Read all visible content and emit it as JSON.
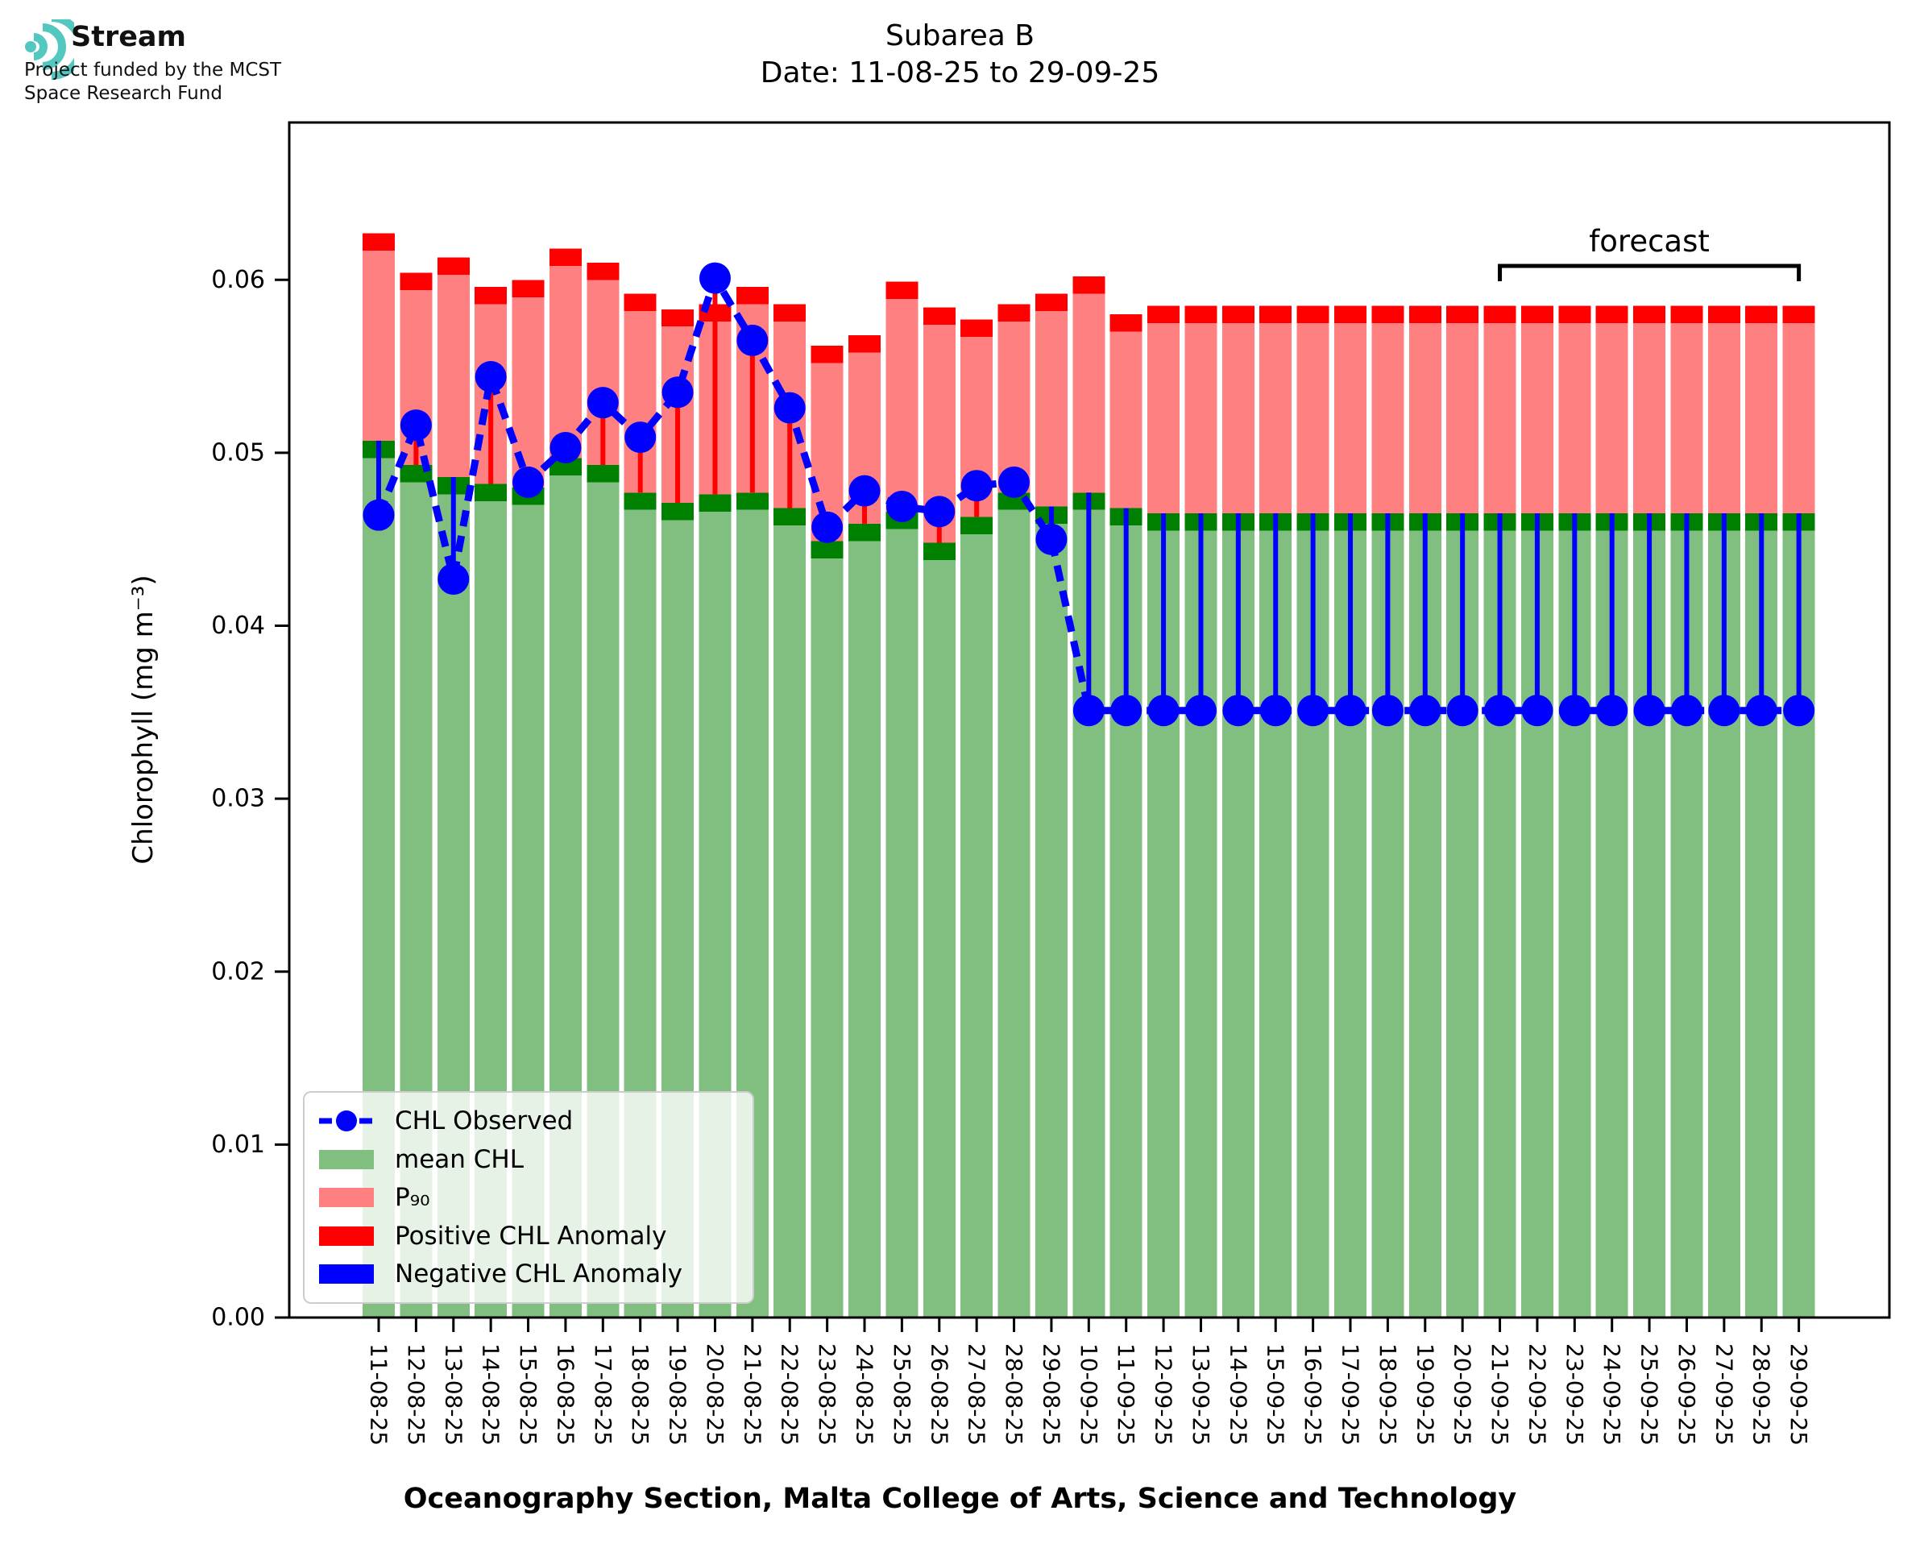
{
  "logo": {
    "brand": "Stream",
    "funding_line1": "Project funded by the MCST",
    "funding_line2": "Space Research Fund",
    "icon": "teal-sound-wave-arcs",
    "icon_color": "#55c7c1"
  },
  "title": {
    "line1": "Subarea B",
    "line2": "Date: 11-08-25 to 29-09-25"
  },
  "axes": {
    "y_label": "Chlorophyll (mg m⁻³)",
    "x_label": "Oceanography Section, Malta College of Arts, Science and Technology",
    "y_tick_labels": [
      "0.00",
      "0.01",
      "0.02",
      "0.03",
      "0.04",
      "0.05",
      "0.06"
    ]
  },
  "annotations": {
    "forecast_label": "forecast",
    "forecast_start_date": "21-09-25",
    "forecast_end_date": "29-09-25"
  },
  "legend": {
    "items": [
      {
        "label": "CHL Observed",
        "type": "line-marker",
        "color": "#0000ff"
      },
      {
        "label": "mean CHL",
        "type": "patch",
        "color": "#80bf80"
      },
      {
        "label": "P₉₀",
        "type": "patch",
        "color": "#ff8080"
      },
      {
        "label": "Positive CHL Anomaly",
        "type": "patch",
        "color": "#ff0000"
      },
      {
        "label": "Negative CHL Anomaly",
        "type": "patch",
        "color": "#0000ff"
      }
    ]
  },
  "colors": {
    "mean_fill": "#80bf80",
    "mean_cap": "#008000",
    "p90_fill": "#ff8080",
    "p90_cap": "#ff0000",
    "observed": "#0000ff",
    "positive_anomaly": "#ff0000",
    "negative_anomaly": "#0000ff",
    "axis": "#000000"
  },
  "chart_data": {
    "type": "bar",
    "title": "Subarea B  Date: 11-08-25 to 29-09-25",
    "xlabel": "Oceanography Section, Malta College of Arts, Science and Technology",
    "ylabel": "Chlorophyll (mg m⁻³)",
    "ylim": [
      0,
      0.0691
    ],
    "y_ticks": [
      0,
      0.01,
      0.02,
      0.03,
      0.04,
      0.05,
      0.06
    ],
    "grid": false,
    "legend_position": "lower left",
    "bar_cap_thickness": 0.001,
    "categories": [
      "11-08-25",
      "12-08-25",
      "13-08-25",
      "14-08-25",
      "15-08-25",
      "16-08-25",
      "17-08-25",
      "18-08-25",
      "19-08-25",
      "20-08-25",
      "21-08-25",
      "22-08-25",
      "23-08-25",
      "24-08-25",
      "25-08-25",
      "26-08-25",
      "27-08-25",
      "28-08-25",
      "29-08-25",
      "10-09-25",
      "11-09-25",
      "12-09-25",
      "13-09-25",
      "14-09-25",
      "15-09-25",
      "16-09-25",
      "17-09-25",
      "18-09-25",
      "19-09-25",
      "20-09-25",
      "21-09-25",
      "22-09-25",
      "23-09-25",
      "24-09-25",
      "25-09-25",
      "26-09-25",
      "27-09-25",
      "28-09-25",
      "29-09-25"
    ],
    "series": [
      {
        "name": "mean CHL",
        "render": "bar",
        "values": [
          0.0507,
          0.0493,
          0.0486,
          0.0482,
          0.048,
          0.0497,
          0.0493,
          0.0477,
          0.0471,
          0.0476,
          0.0477,
          0.0468,
          0.0449,
          0.0459,
          0.0466,
          0.0448,
          0.0463,
          0.0477,
          0.0469,
          0.0477,
          0.0468,
          0.0465,
          0.0465,
          0.0465,
          0.0465,
          0.0465,
          0.0465,
          0.0465,
          0.0465,
          0.0465,
          0.0465,
          0.0465,
          0.0465,
          0.0465,
          0.0465,
          0.0465,
          0.0465,
          0.0465,
          0.0465
        ]
      },
      {
        "name": "P90",
        "render": "bar",
        "values": [
          0.0627,
          0.0604,
          0.0613,
          0.0596,
          0.06,
          0.0618,
          0.061,
          0.0592,
          0.0583,
          0.0586,
          0.0596,
          0.0586,
          0.0562,
          0.0568,
          0.0599,
          0.0584,
          0.0577,
          0.0586,
          0.0592,
          0.0602,
          0.058,
          0.0585,
          0.0585,
          0.0585,
          0.0585,
          0.0585,
          0.0585,
          0.0585,
          0.0585,
          0.0585,
          0.0585,
          0.0585,
          0.0585,
          0.0585,
          0.0585,
          0.0585,
          0.0585,
          0.0585,
          0.0585
        ]
      },
      {
        "name": "CHL Observed",
        "render": "dashed-line-with-markers",
        "values": [
          0.0464,
          0.0516,
          0.0427,
          0.0544,
          0.0483,
          0.0503,
          0.0529,
          0.0509,
          0.0535,
          0.0601,
          0.0565,
          0.0526,
          0.0457,
          0.0478,
          0.0469,
          0.0466,
          0.0481,
          0.0483,
          0.045,
          0.0351,
          0.0351,
          0.0351,
          0.0351,
          0.0351,
          0.0351,
          0.0351,
          0.0351,
          0.0351,
          0.0351,
          0.0351,
          0.0351,
          0.0351,
          0.0351,
          0.0351,
          0.0351,
          0.0351,
          0.0351,
          0.0351,
          0.0351
        ]
      }
    ]
  }
}
